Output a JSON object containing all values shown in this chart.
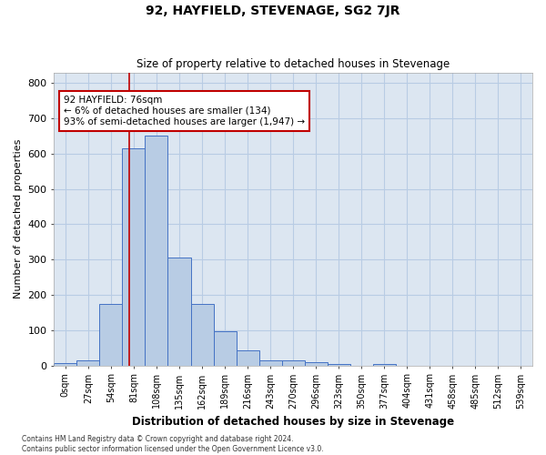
{
  "title": "92, HAYFIELD, STEVENAGE, SG2 7JR",
  "subtitle": "Size of property relative to detached houses in Stevenage",
  "xlabel": "Distribution of detached houses by size in Stevenage",
  "ylabel": "Number of detached properties",
  "categories": [
    "0sqm",
    "27sqm",
    "54sqm",
    "81sqm",
    "108sqm",
    "135sqm",
    "162sqm",
    "189sqm",
    "216sqm",
    "243sqm",
    "270sqm",
    "296sqm",
    "323sqm",
    "350sqm",
    "377sqm",
    "404sqm",
    "431sqm",
    "458sqm",
    "485sqm",
    "512sqm",
    "539sqm"
  ],
  "values": [
    8,
    15,
    175,
    615,
    650,
    305,
    175,
    97,
    42,
    15,
    15,
    10,
    5,
    0,
    5,
    0,
    0,
    0,
    0,
    0,
    0
  ],
  "bar_color": "#b8cce4",
  "bar_edge_color": "#4472c4",
  "vline_x": 2.82,
  "annotation_text": "92 HAYFIELD: 76sqm\n← 6% of detached houses are smaller (134)\n93% of semi-detached houses are larger (1,947) →",
  "annotation_box_color": "#ffffff",
  "annotation_box_edge_color": "#c00000",
  "vline_color": "#c00000",
  "grid_color": "#b8cce4",
  "background_color": "#dce6f1",
  "ylim": [
    0,
    830
  ],
  "yticks": [
    0,
    100,
    200,
    300,
    400,
    500,
    600,
    700,
    800
  ],
  "footer_line1": "Contains HM Land Registry data © Crown copyright and database right 2024.",
  "footer_line2": "Contains public sector information licensed under the Open Government Licence v3.0."
}
